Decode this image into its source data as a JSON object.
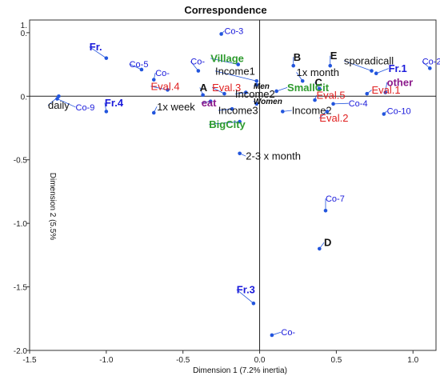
{
  "chart_data": {
    "type": "scatter",
    "title": "Correspondence",
    "xlabel": "Dimension 1 (7.2% inertia)",
    "ylabel": "Dimension   2   (5.5%",
    "xlim": [
      -1.5,
      1.15
    ],
    "ylim": [
      -2.0,
      0.6
    ],
    "xticks": [
      -1.5,
      -1.0,
      -0.5,
      0.0,
      0.5,
      1.0
    ],
    "xtick_labels": [
      "-1.5",
      "-1.0",
      "-0.5",
      "0.0",
      "0.5",
      "1.0"
    ],
    "yticks": [
      -2.0,
      -1.5,
      -1.0,
      -0.5,
      0.0,
      0.5
    ],
    "ytick_labels": [
      "-2.0",
      "-1.5",
      "-1.0",
      "-0.5",
      "0.",
      "0."
    ],
    "yextra_label": "1.",
    "grid": false,
    "colors": {
      "black": "#111111",
      "blue": "#1a1adb",
      "red": "#e01f1f",
      "green": "#2e9b2e",
      "purple": "#8b1a8b",
      "point": "#2255dd"
    },
    "points": [
      {
        "label": "Co-3",
        "x": -0.25,
        "y": 0.49,
        "lx": -0.23,
        "ly": 0.49,
        "color": "blue",
        "size": 11,
        "weight": "normal",
        "italic": false
      },
      {
        "label": "Fr.",
        "x": -1.0,
        "y": 0.3,
        "lx": -1.11,
        "ly": 0.36,
        "color": "blue",
        "size": 13,
        "weight": "bold",
        "italic": false
      },
      {
        "label": "Co-5",
        "x": -0.77,
        "y": 0.21,
        "lx": -0.85,
        "ly": 0.23,
        "color": "blue",
        "size": 11,
        "weight": "normal",
        "italic": false
      },
      {
        "label": "Co-",
        "x": -0.69,
        "y": 0.13,
        "lx": -0.68,
        "ly": 0.16,
        "color": "blue",
        "size": 11,
        "weight": "normal",
        "italic": false
      },
      {
        "label": "Co-",
        "x": -0.4,
        "y": 0.2,
        "lx": -0.45,
        "ly": 0.25,
        "color": "blue",
        "size": 11,
        "weight": "normal",
        "italic": false
      },
      {
        "label": "Village",
        "x": -0.14,
        "y": 0.25,
        "lx": -0.32,
        "ly": 0.27,
        "color": "green",
        "size": 13,
        "weight": "bold",
        "italic": false
      },
      {
        "label": "B",
        "x": 0.22,
        "y": 0.24,
        "lx": 0.22,
        "ly": 0.28,
        "color": "black",
        "size": 13,
        "weight": "bold",
        "italic": false
      },
      {
        "label": "E",
        "x": 0.46,
        "y": 0.24,
        "lx": 0.46,
        "ly": 0.29,
        "color": "black",
        "size": 13,
        "weight": "bold",
        "italic": false
      },
      {
        "label": "sporadicall",
        "x": 0.73,
        "y": 0.2,
        "lx": 0.55,
        "ly": 0.25,
        "color": "black",
        "size": 13,
        "weight": "normal",
        "italic": false
      },
      {
        "label": "Co-2",
        "x": 1.11,
        "y": 0.22,
        "lx": 1.06,
        "ly": 0.25,
        "color": "blue",
        "size": 11,
        "weight": "normal",
        "italic": false
      },
      {
        "label": "Fr.1",
        "x": 0.76,
        "y": 0.18,
        "lx": 0.84,
        "ly": 0.19,
        "color": "blue",
        "size": 13,
        "weight": "bold",
        "italic": false
      },
      {
        "label": "Income1",
        "x": -0.02,
        "y": 0.12,
        "lx": -0.29,
        "ly": 0.17,
        "color": "black",
        "size": 13,
        "weight": "normal",
        "italic": false
      },
      {
        "label": "1x month",
        "x": 0.28,
        "y": 0.12,
        "lx": 0.24,
        "ly": 0.16,
        "color": "black",
        "size": 13,
        "weight": "normal",
        "italic": false
      },
      {
        "label": "Men",
        "x": -0.02,
        "y": 0.09,
        "lx": -0.04,
        "ly": 0.06,
        "color": "black",
        "size": 10,
        "weight": "bold",
        "italic": true
      },
      {
        "label": "other",
        "x": 0.82,
        "y": 0.03,
        "lx": 0.83,
        "ly": 0.08,
        "color": "purple",
        "size": 13,
        "weight": "bold",
        "italic": false
      },
      {
        "label": "C",
        "x": 0.39,
        "y": 0.06,
        "lx": 0.36,
        "ly": 0.08,
        "color": "black",
        "size": 13,
        "weight": "bold",
        "italic": false
      },
      {
        "label": "Eval.4",
        "x": -0.6,
        "y": 0.05,
        "lx": -0.71,
        "ly": 0.05,
        "color": "red",
        "size": 13,
        "weight": "normal",
        "italic": false
      },
      {
        "label": "Eval.3",
        "x": -0.23,
        "y": 0.02,
        "lx": -0.31,
        "ly": 0.04,
        "color": "red",
        "size": 13,
        "weight": "normal",
        "italic": false
      },
      {
        "label": "A",
        "x": -0.37,
        "y": 0.01,
        "lx": -0.39,
        "ly": 0.04,
        "color": "black",
        "size": 13,
        "weight": "bold",
        "italic": false
      },
      {
        "label": "SmallCit",
        "x": 0.11,
        "y": 0.04,
        "lx": 0.18,
        "ly": 0.04,
        "color": "green",
        "size": 13,
        "weight": "bold",
        "italic": false
      },
      {
        "label": "Eval.1",
        "x": 0.7,
        "y": 0.02,
        "lx": 0.73,
        "ly": 0.02,
        "color": "red",
        "size": 13,
        "weight": "normal",
        "italic": false
      },
      {
        "label": "Income2",
        "x": -0.09,
        "y": 0.03,
        "lx": -0.16,
        "ly": -0.01,
        "color": "black",
        "size": 13,
        "weight": "normal",
        "italic": false
      },
      {
        "label": "Eval.5",
        "x": 0.36,
        "y": -0.03,
        "lx": 0.37,
        "ly": -0.02,
        "color": "red",
        "size": 13,
        "weight": "normal",
        "italic": false
      },
      {
        "label": "eat",
        "x": -0.32,
        "y": -0.04,
        "lx": -0.38,
        "ly": -0.08,
        "color": "purple",
        "size": 13,
        "weight": "bold",
        "italic": false
      },
      {
        "label": "Women",
        "x": -0.02,
        "y": -0.06,
        "lx": -0.04,
        "ly": -0.06,
        "color": "black",
        "size": 10,
        "weight": "bold",
        "italic": true
      },
      {
        "label": "daily",
        "x": -1.31,
        "y": 0.0,
        "lx": -1.38,
        "ly": -0.1,
        "color": "black",
        "size": 13,
        "weight": "normal",
        "italic": false
      },
      {
        "label": "Co-9",
        "x": -1.32,
        "y": -0.02,
        "lx": -1.2,
        "ly": -0.11,
        "color": "blue",
        "size": 11,
        "weight": "normal",
        "italic": false
      },
      {
        "label": "Fr.4",
        "x": -1.0,
        "y": -0.12,
        "lx": -1.01,
        "ly": -0.08,
        "color": "blue",
        "size": 13,
        "weight": "bold",
        "italic": false
      },
      {
        "label": "1x week",
        "x": -0.69,
        "y": -0.13,
        "lx": -0.67,
        "ly": -0.11,
        "color": "black",
        "size": 13,
        "weight": "normal",
        "italic": false
      },
      {
        "label": "Income3",
        "x": -0.18,
        "y": -0.1,
        "lx": -0.27,
        "ly": -0.14,
        "color": "black",
        "size": 13,
        "weight": "normal",
        "italic": false
      },
      {
        "label": "Income2",
        "x": 0.15,
        "y": -0.12,
        "lx": 0.21,
        "ly": -0.14,
        "color": "black",
        "size": 13,
        "weight": "normal",
        "italic": false
      },
      {
        "label": "Co-4",
        "x": 0.48,
        "y": -0.06,
        "lx": 0.58,
        "ly": -0.08,
        "color": "blue",
        "size": 11,
        "weight": "normal",
        "italic": false
      },
      {
        "label": "Eval.2",
        "x": 0.44,
        "y": -0.12,
        "lx": 0.39,
        "ly": -0.2,
        "color": "red",
        "size": 13,
        "weight": "normal",
        "italic": false
      },
      {
        "label": "Co-10",
        "x": 0.81,
        "y": -0.14,
        "lx": 0.83,
        "ly": -0.14,
        "color": "blue",
        "size": 11,
        "weight": "normal",
        "italic": false
      },
      {
        "label": "BigCity",
        "x": -0.13,
        "y": -0.2,
        "lx": -0.33,
        "ly": -0.25,
        "color": "green",
        "size": 13,
        "weight": "bold",
        "italic": false
      },
      {
        "label": "2-3 x month",
        "x": -0.13,
        "y": -0.45,
        "lx": -0.09,
        "ly": -0.5,
        "color": "black",
        "size": 13,
        "weight": "normal",
        "italic": false
      },
      {
        "label": "Co-7",
        "x": 0.43,
        "y": -0.9,
        "lx": 0.43,
        "ly": -0.83,
        "color": "blue",
        "size": 11,
        "weight": "normal",
        "italic": false
      },
      {
        "label": "D",
        "x": 0.39,
        "y": -1.2,
        "lx": 0.42,
        "ly": -1.18,
        "color": "black",
        "size": 13,
        "weight": "bold",
        "italic": false
      },
      {
        "label": "Fr.3",
        "x": -0.04,
        "y": -1.63,
        "lx": -0.15,
        "ly": -1.55,
        "color": "blue",
        "size": 13,
        "weight": "bold",
        "italic": false
      },
      {
        "label": "Co-",
        "x": 0.08,
        "y": -1.88,
        "lx": 0.14,
        "ly": -1.88,
        "color": "blue",
        "size": 11,
        "weight": "normal",
        "italic": false
      }
    ]
  }
}
